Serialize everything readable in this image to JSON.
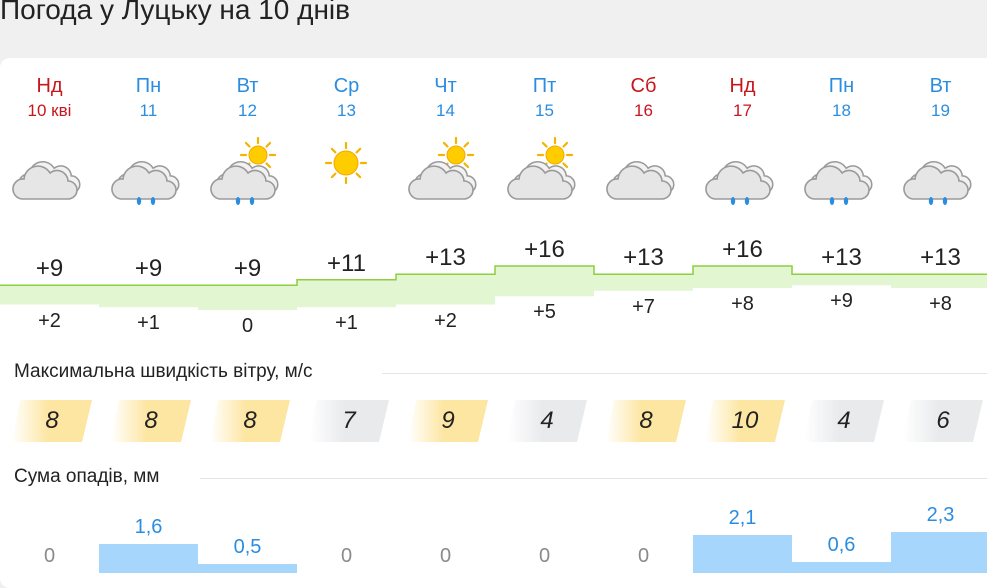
{
  "title": "Погода у Луцьку на 10 днів",
  "days": [
    {
      "name": "Нд",
      "date": "10 кві",
      "weekend": true,
      "icon": "cloudy-icon",
      "max": "+9",
      "min": "+2",
      "max_v": 9,
      "min_v": 2,
      "wind": "8",
      "wind_level": "high",
      "precip": "0",
      "precip_v": 0
    },
    {
      "name": "Пн",
      "date": "11",
      "weekend": false,
      "icon": "cloud-rain-icon",
      "max": "+9",
      "min": "+1",
      "max_v": 9,
      "min_v": 1,
      "wind": "8",
      "wind_level": "high",
      "precip": "1,6",
      "precip_v": 1.6
    },
    {
      "name": "Вт",
      "date": "12",
      "weekend": false,
      "icon": "sun-cloud-rain-icon",
      "max": "+9",
      "min": "0",
      "max_v": 9,
      "min_v": 0,
      "wind": "8",
      "wind_level": "high",
      "precip": "0,5",
      "precip_v": 0.5
    },
    {
      "name": "Ср",
      "date": "13",
      "weekend": false,
      "icon": "sun-icon",
      "max": "+11",
      "min": "+1",
      "max_v": 11,
      "min_v": 1,
      "wind": "7",
      "wind_level": "low",
      "precip": "0",
      "precip_v": 0
    },
    {
      "name": "Чт",
      "date": "14",
      "weekend": false,
      "icon": "sun-cloud-icon",
      "max": "+13",
      "min": "+2",
      "max_v": 13,
      "min_v": 2,
      "wind": "9",
      "wind_level": "high",
      "precip": "0",
      "precip_v": 0
    },
    {
      "name": "Пт",
      "date": "15",
      "weekend": false,
      "icon": "sun-cloud-icon",
      "max": "+16",
      "min": "+5",
      "max_v": 16,
      "min_v": 5,
      "wind": "4",
      "wind_level": "low",
      "precip": "0",
      "precip_v": 0
    },
    {
      "name": "Сб",
      "date": "16",
      "weekend": true,
      "icon": "cloudy-icon",
      "max": "+13",
      "min": "+7",
      "max_v": 13,
      "min_v": 7,
      "wind": "8",
      "wind_level": "high",
      "precip": "0",
      "precip_v": 0
    },
    {
      "name": "Нд",
      "date": "17",
      "weekend": true,
      "icon": "cloud-rain-icon",
      "max": "+16",
      "min": "+8",
      "max_v": 16,
      "min_v": 8,
      "wind": "10",
      "wind_level": "high",
      "precip": "2,1",
      "precip_v": 2.1
    },
    {
      "name": "Пн",
      "date": "18",
      "weekend": false,
      "icon": "cloud-rain-icon",
      "max": "+13",
      "min": "+9",
      "max_v": 13,
      "min_v": 9,
      "wind": "4",
      "wind_level": "low",
      "precip": "0,6",
      "precip_v": 0.6
    },
    {
      "name": "Вт",
      "date": "19",
      "weekend": false,
      "icon": "cloud-rain-icon",
      "max": "+13",
      "min": "+8",
      "max_v": 13,
      "min_v": 8,
      "wind": "6",
      "wind_level": "low",
      "precip": "2,3",
      "precip_v": 2.3
    }
  ],
  "wind_title": "Максимальна швидкість вітру, м/с",
  "precip_title": "Сума опадів, мм",
  "colors": {
    "weekday": "#2b8de0",
    "weekend": "#c8161d",
    "band": "#e2f6d2",
    "band_line": "#8ccf3f",
    "wind_high": "#fde6a2",
    "wind_low": "#e9eaec",
    "precip": "#a6d6fb",
    "precip_text": "#2b8de0",
    "zero_text": "#8a8a8a"
  }
}
